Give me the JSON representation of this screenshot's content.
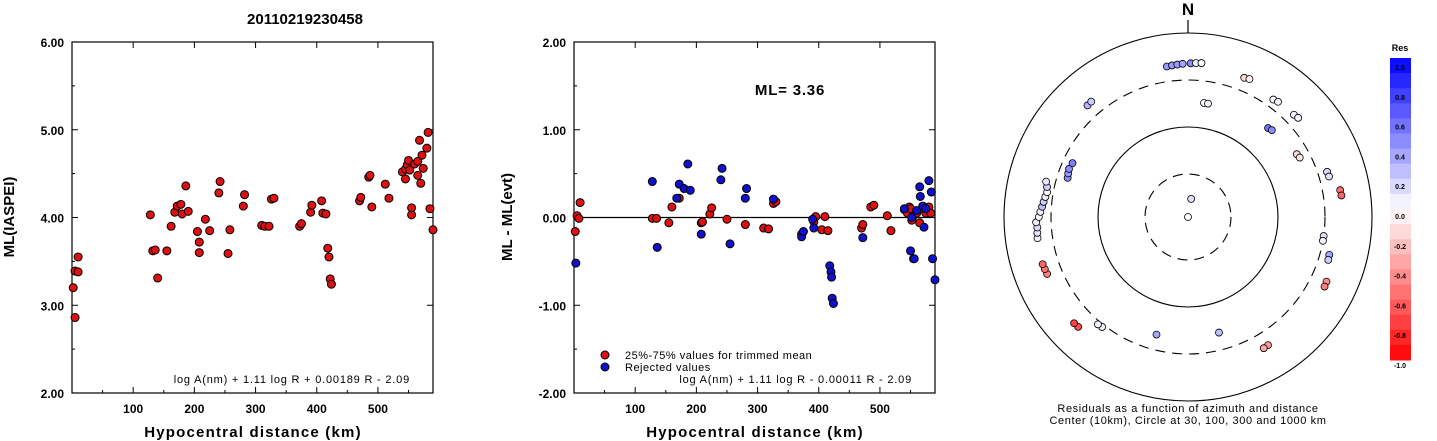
{
  "title": "20110219230458",
  "chart_data": [
    {
      "type": "scatter",
      "ylabel": "ML(IASPEI)",
      "xlabel": "Hypocentral distance (km)",
      "xlim": [
        0,
        590
      ],
      "ylim": [
        2.0,
        6.0
      ],
      "x_ticks": [
        "100",
        "200",
        "300",
        "400",
        "500"
      ],
      "x_tick_values": [
        100,
        200,
        300,
        400,
        500
      ],
      "y_ticks": [
        "2.00",
        "3.00",
        "4.00",
        "5.00",
        "6.00"
      ],
      "y_tick_values": [
        2,
        3,
        4,
        5,
        6
      ],
      "formula": "log A(nm) + 1.11 log R + 0.00189 R - 2.09",
      "colors": {
        "point": "#dd1111"
      },
      "points": [
        [
          2,
          3.2
        ],
        [
          5,
          3.39
        ],
        [
          5,
          2.86
        ],
        [
          10,
          3.38
        ],
        [
          10,
          3.55
        ],
        [
          128,
          4.03
        ],
        [
          132,
          3.62
        ],
        [
          136,
          3.63
        ],
        [
          140,
          3.31
        ],
        [
          155,
          3.62
        ],
        [
          162,
          3.9
        ],
        [
          168,
          4.06
        ],
        [
          172,
          4.13
        ],
        [
          178,
          4.15
        ],
        [
          180,
          4.04
        ],
        [
          186,
          4.36
        ],
        [
          190,
          4.07
        ],
        [
          205,
          3.84
        ],
        [
          208,
          3.6
        ],
        [
          208,
          3.72
        ],
        [
          218,
          3.98
        ],
        [
          225,
          3.85
        ],
        [
          240,
          4.28
        ],
        [
          242,
          4.41
        ],
        [
          255,
          3.59
        ],
        [
          258,
          3.86
        ],
        [
          280,
          4.13
        ],
        [
          282,
          4.26
        ],
        [
          310,
          3.91
        ],
        [
          315,
          3.9
        ],
        [
          322,
          3.9
        ],
        [
          326,
          4.21
        ],
        [
          330,
          4.22
        ],
        [
          372,
          3.9
        ],
        [
          375,
          3.93
        ],
        [
          390,
          4.06
        ],
        [
          392,
          4.14
        ],
        [
          408,
          4.19
        ],
        [
          410,
          4.05
        ],
        [
          415,
          4.04
        ],
        [
          418,
          3.65
        ],
        [
          420,
          3.55
        ],
        [
          422,
          3.3
        ],
        [
          424,
          3.24
        ],
        [
          470,
          4.19
        ],
        [
          472,
          4.23
        ],
        [
          485,
          4.46
        ],
        [
          487,
          4.48
        ],
        [
          490,
          4.12
        ],
        [
          512,
          4.38
        ],
        [
          518,
          4.22
        ],
        [
          540,
          4.52
        ],
        [
          545,
          4.55
        ],
        [
          545,
          4.44
        ],
        [
          548,
          4.6
        ],
        [
          550,
          4.65
        ],
        [
          552,
          4.54
        ],
        [
          555,
          4.03
        ],
        [
          555,
          4.11
        ],
        [
          560,
          4.61
        ],
        [
          565,
          4.64
        ],
        [
          565,
          4.48
        ],
        [
          568,
          4.88
        ],
        [
          570,
          4.39
        ],
        [
          572,
          4.71
        ],
        [
          574,
          4.56
        ],
        [
          580,
          4.79
        ],
        [
          582,
          4.97
        ],
        [
          585,
          4.1
        ],
        [
          590,
          3.86
        ]
      ]
    },
    {
      "type": "scatter",
      "ylabel": "ML - ML(evt)",
      "xlabel": "Hypocentral distance (km)",
      "xlim": [
        0,
        590
      ],
      "ylim": [
        -2.0,
        2.0
      ],
      "x_ticks": [
        "100",
        "200",
        "300",
        "400",
        "500"
      ],
      "x_tick_values": [
        100,
        200,
        300,
        400,
        500
      ],
      "y_ticks": [
        "-2.00",
        "-1.00",
        "0.00",
        "1.00",
        "2.00"
      ],
      "y_tick_values": [
        -2,
        -1,
        0,
        1,
        2
      ],
      "annotation": "ML= 3.36",
      "formula": "log A(nm) + 1.11 log R - 0.00011 R - 2.09",
      "legend": [
        "25%-75% values for trimmed mean",
        "Rejected values"
      ],
      "colors": {
        "trimmed": "#dd1111",
        "rejected": "#1111cc"
      },
      "series": [
        {
          "name": "25%-75% values for trimmed mean",
          "points": [
            [
              2,
              -0.16
            ],
            [
              5,
              0.02
            ],
            [
              8,
              -0.01
            ],
            [
              10,
              0.17
            ],
            [
              128,
              -0.01
            ],
            [
              135,
              -0.01
            ],
            [
              155,
              -0.06
            ],
            [
              160,
              0.12
            ],
            [
              172,
              0.22
            ],
            [
              208,
              -0.06
            ],
            [
              210,
              -0.05
            ],
            [
              222,
              0.04
            ],
            [
              225,
              0.11
            ],
            [
              250,
              -0.02
            ],
            [
              280,
              -0.08
            ],
            [
              310,
              -0.12
            ],
            [
              318,
              -0.13
            ],
            [
              326,
              0.16
            ],
            [
              330,
              0.18
            ],
            [
              372,
              -0.19
            ],
            [
              392,
              -0.05
            ],
            [
              395,
              0.01
            ],
            [
              405,
              -0.14
            ],
            [
              410,
              0.01
            ],
            [
              415,
              -0.15
            ],
            [
              470,
              -0.12
            ],
            [
              472,
              -0.08
            ],
            [
              485,
              0.12
            ],
            [
              490,
              0.14
            ],
            [
              512,
              0.02
            ],
            [
              518,
              -0.15
            ],
            [
              540,
              0.09
            ],
            [
              545,
              0.05
            ],
            [
              548,
              0.12
            ],
            [
              550,
              0.1
            ],
            [
              552,
              -0.03
            ],
            [
              555,
              0.02
            ],
            [
              560,
              0.05
            ],
            [
              565,
              -0.06
            ],
            [
              570,
              0.1
            ],
            [
              575,
              0.05
            ],
            [
              580,
              0.12
            ],
            [
              583,
              0.05
            ]
          ]
        },
        {
          "name": "Rejected values",
          "points": [
            [
              3,
              -0.52
            ],
            [
              128,
              0.41
            ],
            [
              136,
              -0.34
            ],
            [
              168,
              0.22
            ],
            [
              172,
              0.38
            ],
            [
              180,
              0.33
            ],
            [
              186,
              0.61
            ],
            [
              190,
              0.31
            ],
            [
              208,
              -0.19
            ],
            [
              240,
              0.43
            ],
            [
              242,
              0.56
            ],
            [
              255,
              -0.3
            ],
            [
              280,
              0.22
            ],
            [
              282,
              0.33
            ],
            [
              326,
              0.21
            ],
            [
              372,
              -0.22
            ],
            [
              375,
              -0.16
            ],
            [
              390,
              -0.02
            ],
            [
              392,
              -0.12
            ],
            [
              418,
              -0.55
            ],
            [
              420,
              -0.62
            ],
            [
              421,
              -0.68
            ],
            [
              422,
              -0.92
            ],
            [
              424,
              -0.98
            ],
            [
              472,
              -0.23
            ],
            [
              540,
              0.1
            ],
            [
              550,
              -0.38
            ],
            [
              552,
              0.0
            ],
            [
              555,
              -0.47
            ],
            [
              556,
              -0.47
            ],
            [
              560,
              0.08
            ],
            [
              565,
              0.35
            ],
            [
              566,
              0.24
            ],
            [
              570,
              0.13
            ],
            [
              572,
              -0.11
            ],
            [
              575,
              0.1
            ],
            [
              580,
              0.42
            ],
            [
              584,
              0.29
            ],
            [
              586,
              -0.47
            ],
            [
              590,
              -0.71
            ]
          ]
        }
      ]
    },
    {
      "type": "polar-scatter",
      "north_label": "N",
      "caption_1": "Residuals as a function of azimuth and distance",
      "caption_2": "Center (10km), Circle at 30, 100, 300 and 1000 km",
      "colorbar_title": "Res",
      "colorbar_range": [
        -1.0,
        1.0
      ],
      "colorbar_labels": [
        "1.0",
        "0.8",
        "0.6",
        "0.4",
        "0.2",
        "0.0",
        "-0.2",
        "-0.4",
        "-0.6",
        "-0.8",
        "-1.0"
      ],
      "colors": {
        "negative": "#ff0000",
        "zero": "#ffffff",
        "positive": "#0000ff"
      },
      "stations": [
        {
          "az": 0,
          "dist": 10,
          "res": 0.0
        },
        {
          "az": 10,
          "dist": 16,
          "res": 0.12
        },
        {
          "az": 352,
          "dist": 440,
          "res": 0.4
        },
        {
          "az": 354,
          "dist": 445,
          "res": 0.4
        },
        {
          "az": 356,
          "dist": 450,
          "res": 0.4
        },
        {
          "az": 358,
          "dist": 455,
          "res": 0.35
        },
        {
          "az": 1,
          "dist": 460,
          "res": 0.45
        },
        {
          "az": 3,
          "dist": 465,
          "res": 0.03
        },
        {
          "az": 5,
          "dist": 470,
          "res": 0.02
        },
        {
          "az": 8,
          "dist": 180,
          "res": 0.0
        },
        {
          "az": 10,
          "dist": 180,
          "res": 0.05
        },
        {
          "az": 22,
          "dist": 420,
          "res": -0.15
        },
        {
          "az": 24,
          "dist": 430,
          "res": -0.05
        },
        {
          "az": 36,
          "dist": 370,
          "res": 0.02
        },
        {
          "az": 38,
          "dist": 380,
          "res": 0.05
        },
        {
          "az": 42,
          "dist": 200,
          "res": 0.55
        },
        {
          "az": 44,
          "dist": 205,
          "res": 0.45
        },
        {
          "az": 46,
          "dist": 390,
          "res": 0.05
        },
        {
          "az": 48,
          "dist": 400,
          "res": 0.03
        },
        {
          "az": 60,
          "dist": 230,
          "res": -0.15
        },
        {
          "az": 62,
          "dist": 235,
          "res": -0.1
        },
        {
          "az": 72,
          "dist": 380,
          "res": 0.15
        },
        {
          "az": 74,
          "dist": 385,
          "res": 0.12
        },
        {
          "az": 80,
          "dist": 470,
          "res": -0.55
        },
        {
          "az": 82,
          "dist": 475,
          "res": -0.6
        },
        {
          "az": 98,
          "dist": 300,
          "res": 0.12
        },
        {
          "az": 100,
          "dist": 300,
          "res": 0.05
        },
        {
          "az": 105,
          "dist": 380,
          "res": 0.35
        },
        {
          "az": 107,
          "dist": 385,
          "res": 0.2
        },
        {
          "az": 115,
          "dist": 450,
          "res": -0.45
        },
        {
          "az": 117,
          "dist": 455,
          "res": -0.5
        },
        {
          "az": 148,
          "dist": 430,
          "res": -0.4
        },
        {
          "az": 150,
          "dist": 435,
          "res": -0.35
        },
        {
          "az": 165,
          "dist": 200,
          "res": 0.25
        },
        {
          "az": 195,
          "dist": 210,
          "res": 0.35
        },
        {
          "az": 218,
          "dist": 320,
          "res": 0.03
        },
        {
          "az": 220,
          "dist": 325,
          "res": 0.05
        },
        {
          "az": 225,
          "dist": 480,
          "res": -0.7
        },
        {
          "az": 227,
          "dist": 485,
          "res": -0.75
        },
        {
          "az": 248,
          "dist": 440,
          "res": -0.5
        },
        {
          "az": 250,
          "dist": 445,
          "res": -0.55
        },
        {
          "az": 252,
          "dist": 450,
          "res": -0.6
        },
        {
          "az": 262,
          "dist": 440,
          "res": 0.05
        },
        {
          "az": 264,
          "dist": 435,
          "res": 0.1
        },
        {
          "az": 266,
          "dist": 430,
          "res": 0.15
        },
        {
          "az": 268,
          "dist": 440,
          "res": 0.05
        },
        {
          "az": 270,
          "dist": 410,
          "res": 0.03
        },
        {
          "az": 272,
          "dist": 395,
          "res": 0.05
        },
        {
          "az": 274,
          "dist": 380,
          "res": 0.25
        },
        {
          "az": 276,
          "dist": 370,
          "res": 0.2
        },
        {
          "az": 278,
          "dist": 360,
          "res": 0.05
        },
        {
          "az": 280,
          "dist": 350,
          "res": 0.02
        },
        {
          "az": 282,
          "dist": 360,
          "res": 0.2
        },
        {
          "az": 284,
          "dist": 380,
          "res": 0.1
        },
        {
          "az": 288,
          "dist": 235,
          "res": 0.45
        },
        {
          "az": 290,
          "dist": 240,
          "res": 0.4
        },
        {
          "az": 292,
          "dist": 245,
          "res": 0.45
        },
        {
          "az": 295,
          "dist": 240,
          "res": 0.5
        },
        {
          "az": 318,
          "dist": 420,
          "res": 0.3
        },
        {
          "az": 320,
          "dist": 425,
          "res": 0.2
        }
      ]
    }
  ]
}
